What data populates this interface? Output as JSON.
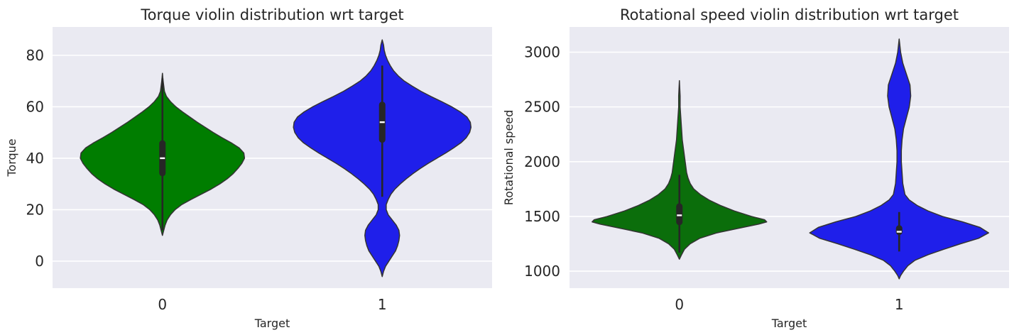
{
  "chart_data": [
    {
      "type": "violin",
      "title": "Torque violin distribution wrt target",
      "xlabel": "Target",
      "ylabel": "Torque",
      "categories": [
        "0",
        "1"
      ],
      "ylim": [
        -10.5,
        91
      ],
      "yticks": [
        0,
        20,
        40,
        60,
        80
      ],
      "grid": true,
      "violins": [
        {
          "category": "0",
          "color": "#007d00",
          "q1": 33,
          "median": 40,
          "q3": 47,
          "whisker_low": 12,
          "whisker_high": 71,
          "density": [
            [
              10,
              0
            ],
            [
              12,
              2
            ],
            [
              14,
              4
            ],
            [
              16,
              7
            ],
            [
              18,
              12
            ],
            [
              20,
              19
            ],
            [
              22,
              29
            ],
            [
              24,
              43
            ],
            [
              26,
              58
            ],
            [
              28,
              73
            ],
            [
              30,
              86
            ],
            [
              32,
              97
            ],
            [
              34,
              106
            ],
            [
              36,
              113
            ],
            [
              38,
              119
            ],
            [
              40,
              123
            ],
            [
              42,
              122
            ],
            [
              44,
              115
            ],
            [
              46,
              103
            ],
            [
              48,
              89
            ],
            [
              50,
              76
            ],
            [
              52,
              64
            ],
            [
              54,
              52
            ],
            [
              56,
              41
            ],
            [
              58,
              30
            ],
            [
              60,
              20
            ],
            [
              62,
              12
            ],
            [
              64,
              6
            ],
            [
              66,
              3
            ],
            [
              68,
              2
            ],
            [
              70,
              1
            ],
            [
              73,
              0
            ]
          ]
        },
        {
          "category": "1",
          "color": "#1f1fea",
          "q1": 46,
          "median": 54,
          "q3": 62,
          "whisker_low": 25,
          "whisker_high": 76,
          "density": [
            [
              -6,
              0
            ],
            [
              -4,
              2
            ],
            [
              -2,
              5
            ],
            [
              0,
              10
            ],
            [
              2,
              15
            ],
            [
              4,
              20
            ],
            [
              6,
              23
            ],
            [
              8,
              25
            ],
            [
              10,
              26
            ],
            [
              12,
              25
            ],
            [
              14,
              21
            ],
            [
              16,
              15
            ],
            [
              18,
              9
            ],
            [
              20,
              6
            ],
            [
              22,
              6
            ],
            [
              24,
              9
            ],
            [
              26,
              13
            ],
            [
              28,
              19
            ],
            [
              30,
              27
            ],
            [
              32,
              36
            ],
            [
              34,
              46
            ],
            [
              36,
              57
            ],
            [
              38,
              69
            ],
            [
              40,
              82
            ],
            [
              42,
              95
            ],
            [
              44,
              107
            ],
            [
              46,
              118
            ],
            [
              48,
              126
            ],
            [
              50,
              131
            ],
            [
              52,
              133
            ],
            [
              54,
              132
            ],
            [
              56,
              127
            ],
            [
              58,
              117
            ],
            [
              60,
              104
            ],
            [
              62,
              89
            ],
            [
              64,
              73
            ],
            [
              66,
              58
            ],
            [
              68,
              45
            ],
            [
              70,
              33
            ],
            [
              72,
              24
            ],
            [
              74,
              17
            ],
            [
              76,
              12
            ],
            [
              78,
              8
            ],
            [
              80,
              5
            ],
            [
              82,
              3
            ],
            [
              84,
              2
            ],
            [
              86,
              0
            ]
          ]
        }
      ]
    },
    {
      "type": "violin",
      "title": "Rotational speed violin distribution wrt target",
      "xlabel": "Target",
      "ylabel": "Rotational speed",
      "categories": [
        "0",
        "1"
      ],
      "ylim": [
        845,
        3230
      ],
      "yticks": [
        1000,
        1500,
        2000,
        2500,
        3000
      ],
      "grid": true,
      "violins": [
        {
          "category": "0",
          "color": "#0b6e0b",
          "q1": 1420,
          "median": 1510,
          "q3": 1620,
          "whisker_low": 1170,
          "whisker_high": 1880,
          "density": [
            [
              1110,
              0
            ],
            [
              1150,
              3
            ],
            [
              1200,
              7
            ],
            [
              1250,
              15
            ],
            [
              1300,
              28
            ],
            [
              1350,
              52
            ],
            [
              1400,
              88
            ],
            [
              1430,
              110
            ],
            [
              1450,
              121
            ],
            [
              1470,
              118
            ],
            [
              1500,
              100
            ],
            [
              1550,
              76
            ],
            [
              1600,
              57
            ],
            [
              1650,
              41
            ],
            [
              1700,
              29
            ],
            [
              1750,
              20
            ],
            [
              1800,
              15
            ],
            [
              1850,
              12
            ],
            [
              1900,
              10
            ],
            [
              1950,
              9
            ],
            [
              2000,
              8
            ],
            [
              2050,
              7
            ],
            [
              2100,
              6
            ],
            [
              2200,
              4
            ],
            [
              2300,
              3
            ],
            [
              2400,
              2
            ],
            [
              2500,
              1
            ],
            [
              2600,
              1
            ],
            [
              2740,
              0
            ]
          ]
        },
        {
          "category": "1",
          "color": "#1f1fea",
          "q1": 1330,
          "median": 1360,
          "q3": 1420,
          "whisker_low": 1180,
          "whisker_high": 1540,
          "density": [
            [
              930,
              0
            ],
            [
              960,
              2
            ],
            [
              1000,
              6
            ],
            [
              1050,
              12
            ],
            [
              1100,
              22
            ],
            [
              1150,
              40
            ],
            [
              1200,
              62
            ],
            [
              1250,
              85
            ],
            [
              1300,
              110
            ],
            [
              1350,
              124
            ],
            [
              1400,
              112
            ],
            [
              1450,
              88
            ],
            [
              1500,
              60
            ],
            [
              1550,
              40
            ],
            [
              1600,
              25
            ],
            [
              1650,
              14
            ],
            [
              1700,
              8
            ],
            [
              1800,
              5
            ],
            [
              1900,
              4
            ],
            [
              2000,
              3
            ],
            [
              2100,
              3
            ],
            [
              2200,
              4
            ],
            [
              2300,
              6
            ],
            [
              2400,
              10
            ],
            [
              2500,
              14
            ],
            [
              2600,
              16
            ],
            [
              2700,
              15
            ],
            [
              2800,
              10
            ],
            [
              2900,
              5
            ],
            [
              3000,
              2
            ],
            [
              3120,
              0
            ]
          ]
        }
      ]
    }
  ]
}
